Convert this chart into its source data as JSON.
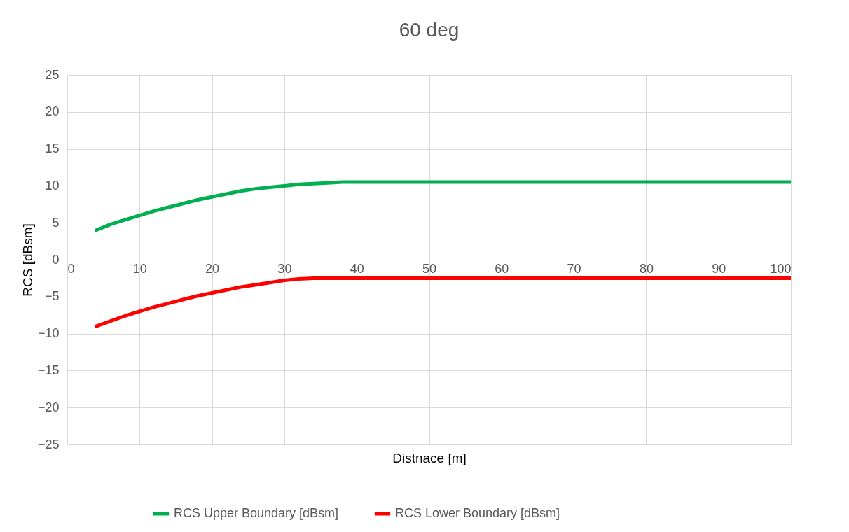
{
  "chart_data": {
    "type": "line",
    "title": "60 deg",
    "xlabel": "Distnace [m]",
    "ylabel": "RCS [dBsm]",
    "xlim": [
      0,
      100
    ],
    "xticks": [
      0,
      10,
      20,
      30,
      40,
      50,
      60,
      70,
      80,
      90,
      100
    ],
    "ylim": [
      -25,
      25
    ],
    "yticks": [
      -25,
      -20,
      -15,
      -10,
      -5,
      0,
      5,
      10,
      15,
      20,
      25
    ],
    "grid": true,
    "legend": "bottom",
    "marker": "none",
    "line_style": "solid",
    "series": [
      {
        "name": "RCS Upper Boundary [dBsm]",
        "color": "#00b050",
        "x": [
          4,
          6,
          8,
          10,
          12,
          14,
          16,
          18,
          20,
          22,
          24,
          26,
          28,
          30,
          32,
          34,
          36,
          38,
          40,
          50,
          60,
          70,
          80,
          90,
          100
        ],
        "values": [
          4,
          4.8,
          5.4,
          6,
          6.6,
          7.1,
          7.6,
          8.1,
          8.5,
          8.9,
          9.3,
          9.6,
          9.8,
          10,
          10.2,
          10.3,
          10.4,
          10.5,
          10.5,
          10.5,
          10.5,
          10.5,
          10.5,
          10.5,
          10.5
        ]
      },
      {
        "name": "RCS Lower Boundary [dBsm]",
        "color": "#ff0000",
        "x": [
          4,
          6,
          8,
          10,
          12,
          14,
          16,
          18,
          20,
          22,
          24,
          26,
          28,
          30,
          32,
          34,
          36,
          38,
          40,
          50,
          60,
          70,
          80,
          90,
          100
        ],
        "values": [
          -9,
          -8.3,
          -7.6,
          -7,
          -6.4,
          -5.9,
          -5.4,
          -4.9,
          -4.5,
          -4.1,
          -3.7,
          -3.4,
          -3.1,
          -2.8,
          -2.6,
          -2.5,
          -2.5,
          -2.5,
          -2.5,
          -2.5,
          -2.5,
          -2.5,
          -2.5,
          -2.5,
          -2.5
        ]
      }
    ]
  }
}
